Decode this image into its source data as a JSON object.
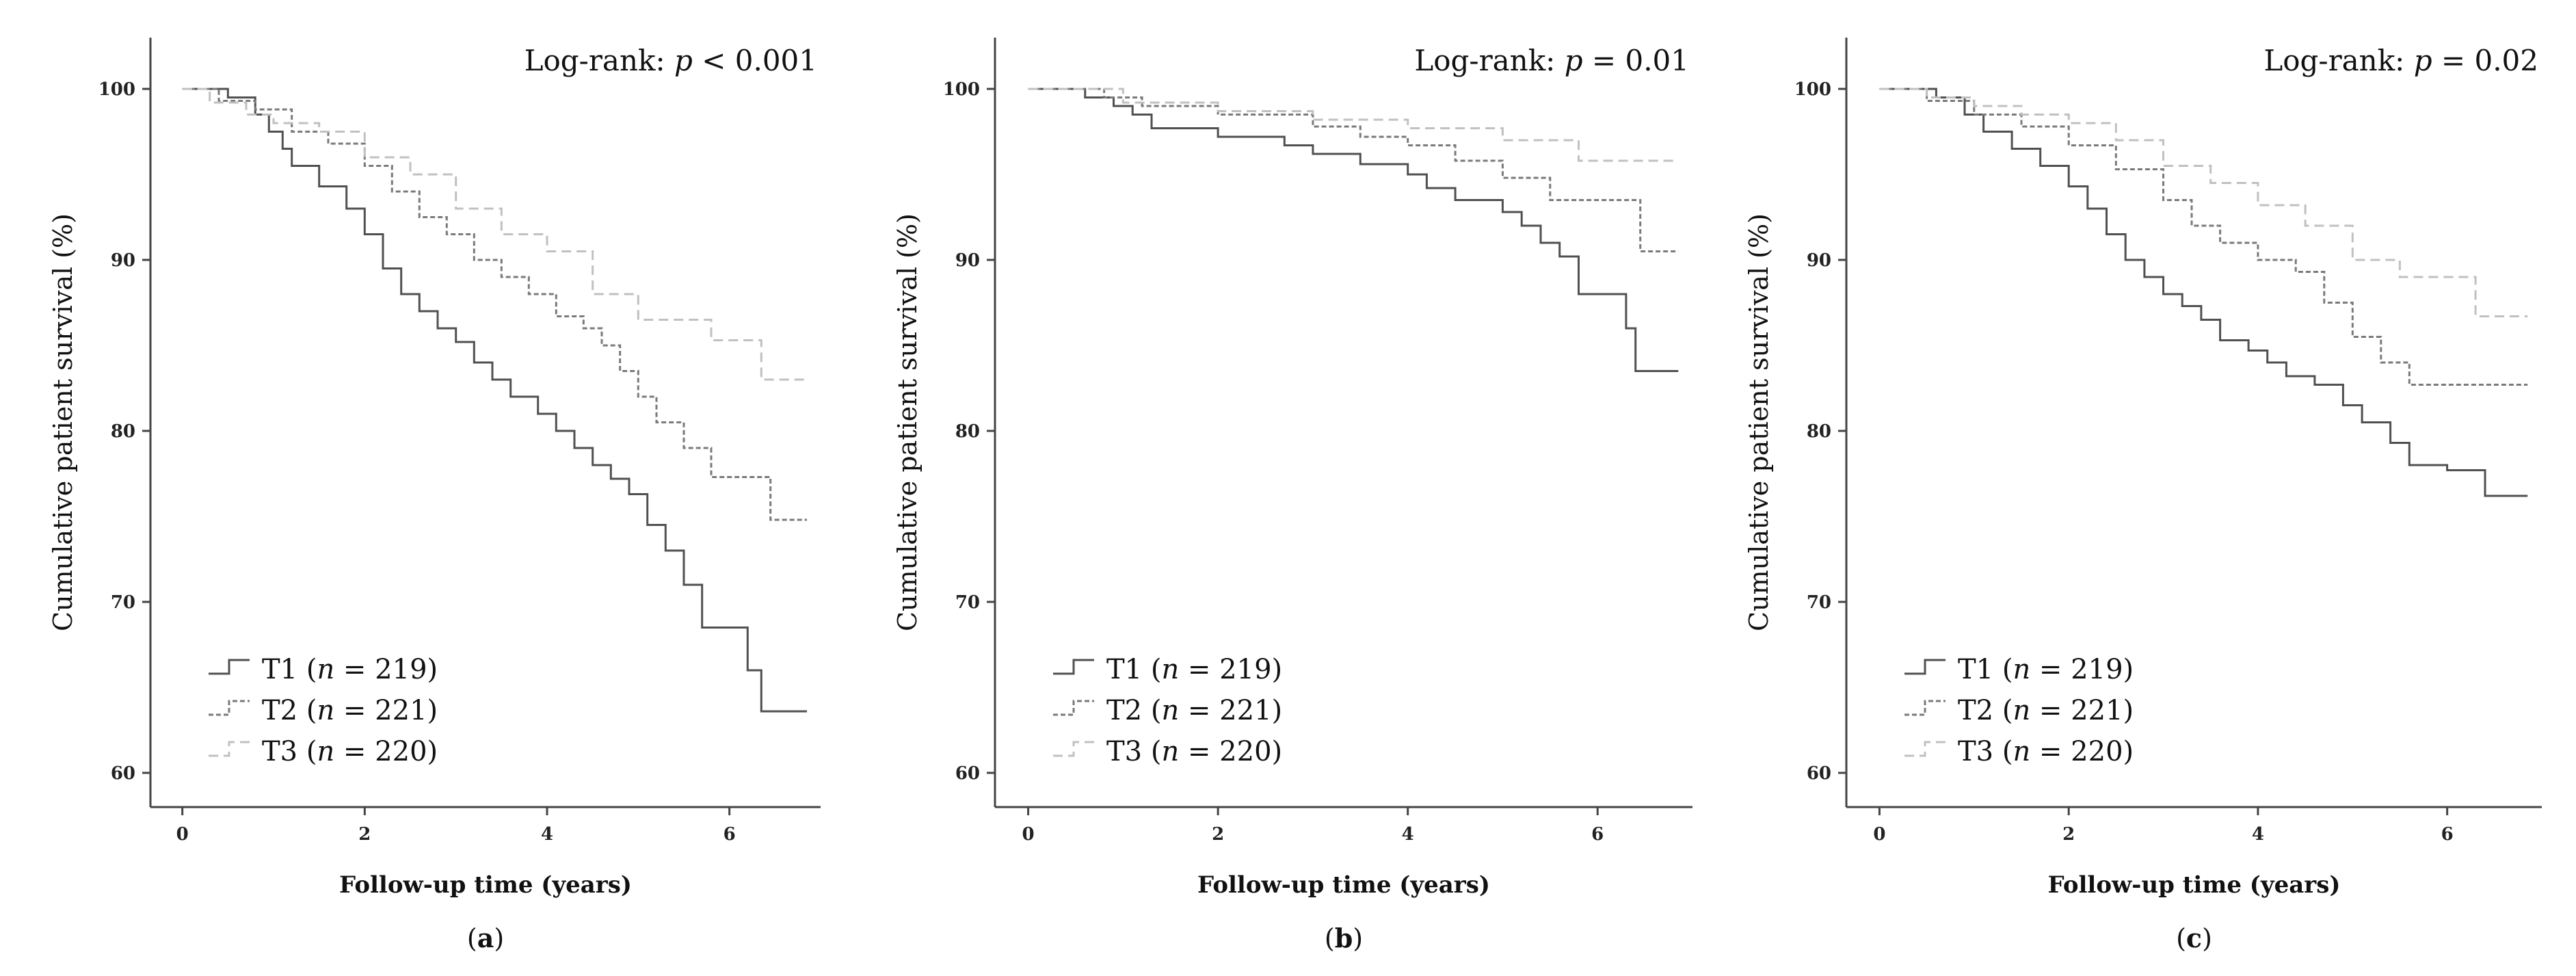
{
  "styles": {
    "T1": {
      "color": "#505050",
      "dash": ""
    },
    "T2": {
      "color": "#7a7a7a",
      "dash": "7,4"
    },
    "T3": {
      "color": "#c0c0c0",
      "dash": "14,8"
    }
  },
  "chart_data": [
    {
      "type": "line",
      "panel": "a",
      "caption": "(a)",
      "caption_letter": "a",
      "xlabel": "Follow-up time (years)",
      "ylabel": "Cumulative patient survival (%)",
      "annotation": "Log-rank: ",
      "annotation_p": "p",
      "annotation_rest": " < 0.001",
      "xlim": [
        -0.35,
        7.0
      ],
      "ylim": [
        58,
        103
      ],
      "xticks": [
        0,
        2,
        4,
        6
      ],
      "yticks": [
        60,
        70,
        80,
        90,
        100
      ],
      "legend_position": "bottom-left",
      "series": [
        {
          "name": "T1",
          "label_pre": "T1 (",
          "label_n": "n",
          "label_post": " = 219)",
          "x": [
            0,
            0.5,
            0.8,
            0.95,
            1.1,
            1.2,
            1.5,
            1.8,
            2.0,
            2.2,
            2.4,
            2.6,
            2.8,
            3.0,
            3.2,
            3.4,
            3.6,
            3.9,
            4.1,
            4.3,
            4.5,
            4.7,
            4.9,
            5.1,
            5.3,
            5.5,
            5.7,
            6.2,
            6.35,
            6.85
          ],
          "y": [
            100,
            99.5,
            98.5,
            97.5,
            96.5,
            95.5,
            94.3,
            93,
            91.5,
            89.5,
            88,
            87,
            86,
            85.2,
            84,
            83,
            82,
            81,
            80,
            79,
            78,
            77.2,
            76.3,
            74.5,
            73,
            71,
            68.5,
            66,
            63.6,
            63.6
          ]
        },
        {
          "name": "T2",
          "label_pre": "T2 (",
          "label_n": "n",
          "label_post": " = 221)",
          "x": [
            0,
            0.4,
            0.8,
            1.2,
            1.6,
            2.0,
            2.3,
            2.6,
            2.9,
            3.2,
            3.5,
            3.8,
            4.1,
            4.4,
            4.6,
            4.8,
            5.0,
            5.2,
            5.5,
            5.8,
            6.2,
            6.45,
            6.85
          ],
          "y": [
            100,
            99.3,
            98.8,
            97.5,
            96.8,
            95.5,
            94,
            92.5,
            91.5,
            90,
            89,
            88,
            86.7,
            86,
            85,
            83.5,
            82,
            80.5,
            79,
            77.3,
            77.3,
            74.8,
            74.8
          ]
        },
        {
          "name": "T3",
          "label_pre": "T3 (",
          "label_n": "n",
          "label_post": " = 220)",
          "x": [
            0,
            0.3,
            0.7,
            1.0,
            1.5,
            2.0,
            2.5,
            3.0,
            3.5,
            4.0,
            4.5,
            5.0,
            5.4,
            5.8,
            6.2,
            6.35,
            6.85
          ],
          "y": [
            100,
            99.2,
            98.5,
            98,
            97.5,
            96,
            95,
            93,
            91.5,
            90.5,
            88,
            86.5,
            86.5,
            85.3,
            85.3,
            83,
            83
          ]
        }
      ]
    },
    {
      "type": "line",
      "panel": "b",
      "caption": "(b)",
      "caption_letter": "b",
      "xlabel": "Follow-up time (years)",
      "ylabel": "Cumulative patient survival (%)",
      "annotation": "Log-rank: ",
      "annotation_p": "p",
      "annotation_rest": " = 0.01",
      "xlim": [
        -0.35,
        7.0
      ],
      "ylim": [
        58,
        103
      ],
      "xticks": [
        0,
        2,
        4,
        6
      ],
      "yticks": [
        60,
        70,
        80,
        90,
        100
      ],
      "legend_position": "bottom-left",
      "series": [
        {
          "name": "T1",
          "label_pre": "T1 (",
          "label_n": "n",
          "label_post": " = 219)",
          "x": [
            0,
            0.6,
            0.9,
            1.1,
            1.3,
            2.0,
            2.7,
            3.0,
            3.5,
            4.0,
            4.2,
            4.5,
            5.0,
            5.2,
            5.4,
            5.6,
            5.8,
            6.3,
            6.4,
            6.85
          ],
          "y": [
            100,
            99.5,
            99,
            98.5,
            97.7,
            97.2,
            96.7,
            96.2,
            95.6,
            95,
            94.2,
            93.5,
            92.8,
            92,
            91,
            90.2,
            88,
            86,
            83.5,
            83.5
          ]
        },
        {
          "name": "T2",
          "label_pre": "T2 (",
          "label_n": "n",
          "label_post": " = 221)",
          "x": [
            0,
            0.8,
            1.2,
            2.0,
            3.0,
            3.5,
            4.0,
            4.5,
            5.0,
            5.5,
            6.0,
            6.45,
            6.85
          ],
          "y": [
            100,
            99.5,
            99,
            98.5,
            97.8,
            97.2,
            96.7,
            95.8,
            94.8,
            93.5,
            93.5,
            90.5,
            90.5
          ]
        },
        {
          "name": "T3",
          "label_pre": "T3 (",
          "label_n": "n",
          "label_post": " = 220)",
          "x": [
            0,
            1.0,
            2.0,
            3.0,
            4.0,
            5.0,
            5.8,
            6.85
          ],
          "y": [
            100,
            99.2,
            98.7,
            98.2,
            97.7,
            97,
            95.8,
            95.8
          ]
        }
      ]
    },
    {
      "type": "line",
      "panel": "c",
      "caption": "(c)",
      "caption_letter": "c",
      "xlabel": "Follow-up time (years)",
      "ylabel": "Cumulative patient survival (%)",
      "annotation": "Log-rank: ",
      "annotation_p": "p",
      "annotation_rest": " = 0.02",
      "xlim": [
        -0.35,
        7.0
      ],
      "ylim": [
        58,
        103
      ],
      "xticks": [
        0,
        2,
        4,
        6
      ],
      "yticks": [
        60,
        70,
        80,
        90,
        100
      ],
      "legend_position": "bottom-left",
      "series": [
        {
          "name": "T1",
          "label_pre": "T1 (",
          "label_n": "n",
          "label_post": " = 219)",
          "x": [
            0,
            0.6,
            0.9,
            1.1,
            1.4,
            1.7,
            2.0,
            2.2,
            2.4,
            2.6,
            2.8,
            3.0,
            3.2,
            3.4,
            3.6,
            3.9,
            4.1,
            4.3,
            4.6,
            4.9,
            5.1,
            5.4,
            5.6,
            6.0,
            6.4,
            6.85
          ],
          "y": [
            100,
            99.5,
            98.5,
            97.5,
            96.5,
            95.5,
            94.3,
            93,
            91.5,
            90,
            89,
            88,
            87.3,
            86.5,
            85.3,
            84.7,
            84,
            83.2,
            82.7,
            81.5,
            80.5,
            79.3,
            78,
            77.7,
            76.2,
            76.2
          ]
        },
        {
          "name": "T2",
          "label_pre": "T2 (",
          "label_n": "n",
          "label_post": " = 221)",
          "x": [
            0,
            0.5,
            1.0,
            1.5,
            2.0,
            2.5,
            3.0,
            3.3,
            3.6,
            4.0,
            4.4,
            4.7,
            5.0,
            5.3,
            5.6,
            6.0,
            6.85
          ],
          "y": [
            100,
            99.3,
            98.5,
            97.8,
            96.7,
            95.3,
            93.5,
            92,
            91,
            90,
            89.3,
            87.5,
            85.5,
            84,
            82.7,
            82.7,
            82.7
          ]
        },
        {
          "name": "T3",
          "label_pre": "T3 (",
          "label_n": "n",
          "label_post": " = 220)",
          "x": [
            0,
            0.5,
            1.0,
            1.5,
            2.0,
            2.5,
            3.0,
            3.5,
            4.0,
            4.5,
            5.0,
            5.5,
            6.0,
            6.3,
            6.85
          ],
          "y": [
            100,
            99.5,
            99,
            98.5,
            98,
            97,
            95.5,
            94.5,
            93.2,
            92,
            90,
            89,
            89,
            86.7,
            86.7
          ]
        }
      ]
    }
  ]
}
